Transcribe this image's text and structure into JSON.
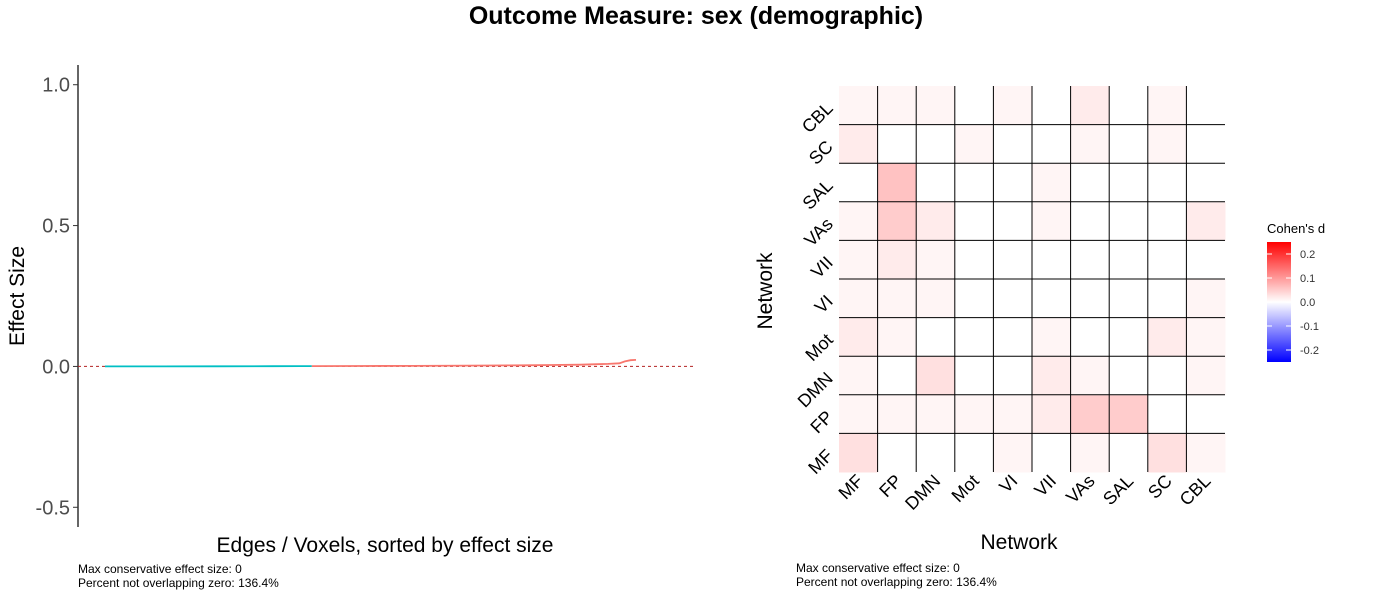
{
  "title": "Outcome Measure: sex (demographic)",
  "left_panel": {
    "caption_line1": "Max conservative effect size: 0",
    "caption_line2": "Percent not overlapping zero: 136.4%"
  },
  "right_panel": {
    "caption_line1": "Max conservative effect size: 0",
    "caption_line2": "Percent not overlapping zero: 136.4%"
  },
  "colors": {
    "positive_line": "#F8766D",
    "negative_line": "#00BFC4",
    "zero_line": "#B22222",
    "high": "#FF0000",
    "mid": "#FFFFFF",
    "low": "#0000FF"
  },
  "chart_data": [
    {
      "type": "line",
      "xlabel": "Edges / Voxels, sorted by effect size",
      "ylabel": "Effect Size",
      "ylim": [
        -0.57,
        1.07
      ],
      "yticks": [
        -0.5,
        0.0,
        0.5,
        1.0
      ],
      "ytick_labels": [
        "-0.5",
        "0.0",
        "0.5",
        "1.0"
      ],
      "grid": false,
      "reference_line": 0.0,
      "xlim": [
        0,
        100
      ],
      "series": [
        {
          "values_x": [
            0,
            10,
            20,
            30,
            35,
            37
          ],
          "values_y": [
            0.0,
            0.0,
            0.0005,
            0.0008,
            0.001,
            0.001
          ]
        },
        {
          "values_x": [
            37,
            45,
            55,
            65,
            75,
            80,
            85,
            88,
            90,
            92,
            93,
            94,
            95
          ],
          "values_y": [
            0.001,
            0.0015,
            0.002,
            0.003,
            0.004,
            0.005,
            0.006,
            0.008,
            0.009,
            0.011,
            0.018,
            0.022,
            0.023
          ]
        }
      ]
    },
    {
      "type": "heatmap",
      "xlabel": "Network",
      "ylabel": "Network",
      "x_categories": [
        "MF",
        "FP",
        "DMN",
        "Mot",
        "VI",
        "VII",
        "VAs",
        "SAL",
        "SC",
        "CBL"
      ],
      "y_categories": [
        "MF",
        "FP",
        "DMN",
        "Mot",
        "VI",
        "VII",
        "VAs",
        "SAL",
        "SC",
        "CBL"
      ],
      "legend_title": "Cohen's d",
      "legend_ticks": [
        0.2,
        0.1,
        0.0,
        -0.1,
        -0.2
      ],
      "legend_tick_labels": [
        "0.2",
        "0.1",
        "0.0",
        "-0.1",
        "-0.2"
      ],
      "legend_limits": [
        -0.25,
        0.25
      ],
      "grid": false,
      "legend_position": "right",
      "values": [
        [
          0.03,
          0.0,
          0.0,
          0.0,
          0.01,
          0.0,
          0.01,
          0.0,
          0.03,
          0.01
        ],
        [
          0.01,
          0.01,
          0.01,
          0.01,
          0.01,
          0.02,
          0.05,
          0.05,
          0.0,
          0.0
        ],
        [
          0.01,
          0.0,
          0.03,
          0.0,
          0.0,
          0.02,
          0.01,
          0.0,
          0.0,
          0.01
        ],
        [
          0.02,
          0.01,
          0.0,
          0.0,
          0.0,
          0.01,
          0.0,
          0.0,
          0.02,
          0.01
        ],
        [
          0.01,
          0.01,
          0.01,
          0.0,
          0.0,
          0.0,
          0.0,
          0.0,
          0.0,
          0.01
        ],
        [
          0.01,
          0.02,
          0.01,
          0.0,
          0.0,
          0.0,
          0.0,
          0.0,
          0.0,
          0.0
        ],
        [
          0.01,
          0.05,
          0.02,
          0.0,
          0.0,
          0.01,
          0.0,
          0.0,
          0.0,
          0.02
        ],
        [
          0.0,
          0.06,
          0.0,
          0.0,
          0.0,
          0.01,
          0.0,
          0.0,
          0.0,
          0.0
        ],
        [
          0.02,
          0.0,
          0.0,
          0.01,
          0.0,
          0.0,
          0.01,
          0.0,
          0.01,
          0.0
        ],
        [
          0.01,
          0.01,
          0.01,
          0.0,
          0.01,
          0.0,
          0.02,
          0.0,
          0.01,
          0.0
        ]
      ]
    }
  ]
}
